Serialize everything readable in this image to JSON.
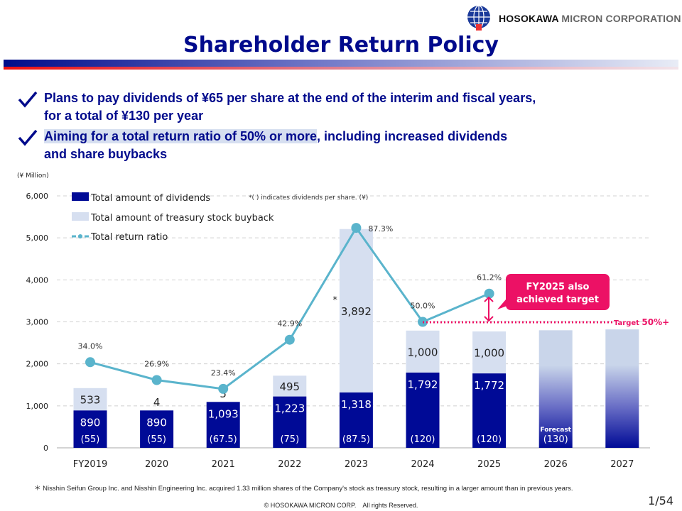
{
  "header": {
    "company": {
      "bold": "HOSOKAWA",
      "rest": "MICRON CORPORATION"
    },
    "title": "Shareholder Return Policy"
  },
  "bullets": [
    {
      "icon": "checkmark-icon",
      "line1": "Plans to pay dividends of ¥65 per share at the end of the interim and fiscal years,",
      "line2": "for a total of ¥130 per year"
    },
    {
      "icon": "checkmark-icon",
      "highlight": "Aiming for a total return ratio of 50% or more",
      "line1_rest": ", including increased dividends",
      "line2": "and share buybacks"
    }
  ],
  "colors": {
    "dividends": "#000a96",
    "buyback": "#d6dff0",
    "ratio": "#5ab4cc",
    "accent": "#ec1165",
    "title": "#000a8c"
  },
  "chart_data": {
    "type": "bar",
    "stacked": true,
    "unit_label": "(¥ Million)",
    "note": "*(  ) indicates dividends per share.  (¥)",
    "categories": [
      "FY2019",
      "2020",
      "2021",
      "2022",
      "2023",
      "2024",
      "2025",
      "2026",
      "2027"
    ],
    "ylim": [
      0,
      6000
    ],
    "yticks": [
      "0",
      "1,000",
      "2,000",
      "3,000",
      "4,000",
      "5,000",
      "6,000"
    ],
    "grid": true,
    "legend_position": "top-left",
    "series": [
      {
        "name": "Total amount of dividends",
        "type": "bar",
        "values": [
          890,
          890,
          1093,
          1223,
          1318,
          1792,
          1772,
          null,
          null
        ],
        "labels": [
          "890",
          "890",
          "1,093",
          "1,223",
          "1,318",
          "1,792",
          "1,772",
          "",
          ""
        ]
      },
      {
        "name": "Total amount of treasury stock buyback",
        "type": "bar",
        "values": [
          533,
          4,
          5,
          495,
          3892,
          1000,
          1000,
          null,
          null
        ],
        "labels": [
          "533",
          "4",
          "5",
          "495",
          "3,892",
          "1,000",
          "1,000",
          "",
          ""
        ]
      },
      {
        "name": "Total return ratio",
        "type": "line",
        "axis": "secondary",
        "ylim": [
          0,
          100
        ],
        "values": [
          34.0,
          26.9,
          23.4,
          42.9,
          87.3,
          50.0,
          61.2,
          null,
          null
        ],
        "labels": [
          "34.0%",
          "26.9%",
          "23.4%",
          "42.9%",
          "87.3%",
          "50.0%",
          "61.2%",
          "",
          ""
        ]
      }
    ],
    "forecast_totals": {
      "2026": 2800,
      "2027": 2820
    },
    "forecast_label": "Forecast",
    "dividends_per_share": [
      "(55)",
      "(55)",
      "(67.5)",
      "(75)",
      "(87.5)",
      "(120)",
      "(120)",
      "(130)",
      ""
    ],
    "asterisk_category": "2023",
    "target": {
      "value": 50,
      "label_prefix": "Target ",
      "label_value": "50%+"
    },
    "callout": {
      "line1": "FY2025 also",
      "line2": "achieved target"
    }
  },
  "footer": {
    "note": "＊ Nisshin Seifun Group Inc. and Nisshin Engineering Inc. acquired 1.33 million shares of the Company's stock as treasury stock, resulting in a larger amount than in previous years.",
    "copyright": "© HOSOKAWA MICRON CORP.　All rights Reserved.",
    "page": "1/54"
  }
}
